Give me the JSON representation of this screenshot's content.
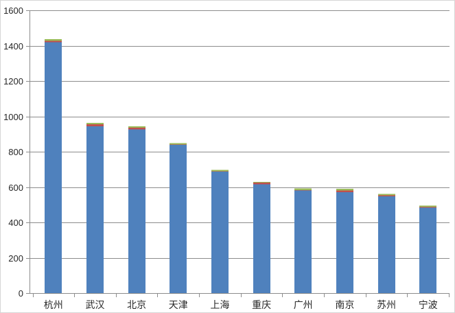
{
  "chart_data": {
    "type": "bar",
    "stacked": true,
    "title": "",
    "xlabel": "",
    "ylabel": "",
    "legend": "none",
    "grid": true,
    "ylim": [
      0,
      1600
    ],
    "ytick_step": 200,
    "ytick_labels": [
      "0",
      "200",
      "400",
      "600",
      "800",
      "1000",
      "1200",
      "1400",
      "1600"
    ],
    "categories": [
      "杭州",
      "武汉",
      "北京",
      "天津",
      "上海",
      "重庆",
      "广州",
      "南京",
      "苏州",
      "宁波"
    ],
    "series": [
      {
        "name": "blue-series",
        "color": "#4F81BD",
        "values": [
          1420,
          944,
          926,
          838,
          688,
          615,
          580,
          571,
          548,
          483
        ]
      },
      {
        "name": "red-series",
        "color": "#C0504D",
        "values": [
          8,
          12,
          9,
          2,
          2,
          10,
          3,
          9,
          5,
          5
        ]
      },
      {
        "name": "green-series",
        "color": "#9BBB59",
        "values": [
          8,
          8,
          9,
          8,
          8,
          4,
          10,
          10,
          8,
          8
        ]
      }
    ],
    "totals_estimated": [
      1436,
      964,
      944,
      848,
      698,
      629,
      593,
      590,
      561,
      496
    ]
  },
  "colors": {
    "bar_blue": "#4F81BD",
    "bar_red": "#C0504D",
    "bar_green": "#9BBB59",
    "gridline": "#8c8c8c",
    "axis": "#8c8c8c",
    "text": "#262626",
    "frame_border": "#d6d6d6",
    "background": "#ffffff"
  }
}
